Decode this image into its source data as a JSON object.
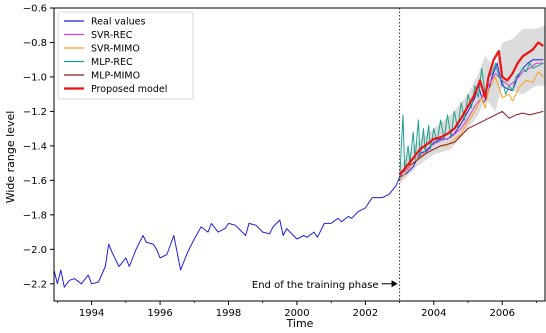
{
  "chart_data": {
    "type": "line",
    "xlabel": "Time",
    "ylabel": "Wide range level",
    "xlim": [
      1992.9,
      2007.25
    ],
    "ylim": [
      -2.3,
      -0.6
    ],
    "x_ticks": [
      1994,
      1996,
      1998,
      2000,
      2002,
      2004,
      2006
    ],
    "y_ticks": [
      -2.2,
      -2.0,
      -1.8,
      -1.6,
      -1.4,
      -1.2,
      -1.0,
      -0.8,
      -0.6
    ],
    "x_tick_labels": [
      "1994",
      "1996",
      "1998",
      "2000",
      "2002",
      "2004",
      "2006"
    ],
    "y_tick_labels": [
      "−2.2",
      "−2.0",
      "−1.8",
      "−1.6",
      "−1.4",
      "−1.2",
      "−1.0",
      "−0.8",
      "−0.6"
    ],
    "grid": false,
    "legend_position": "top-left",
    "annotation": {
      "text": "End of the training phase",
      "x": 2003.0,
      "y": -2.2
    },
    "training_end": 2003.0,
    "uncertainty_band": {
      "color": "#d3d3d3",
      "x": [
        2003.0,
        2003.5,
        2004.0,
        2004.5,
        2005.0,
        2005.3,
        2005.5,
        2005.8,
        2006.0,
        2006.3,
        2006.6,
        2007.0,
        2007.25
      ],
      "lower": [
        -1.62,
        -1.52,
        -1.45,
        -1.42,
        -1.3,
        -1.22,
        -1.12,
        -1.2,
        -1.05,
        -1.08,
        -1.1,
        -1.05,
        -1.05
      ],
      "upper": [
        -1.52,
        -1.38,
        -1.3,
        -1.22,
        -1.1,
        -0.98,
        -0.88,
        -0.95,
        -0.8,
        -0.78,
        -0.72,
        -0.72,
        -0.7
      ]
    },
    "series": [
      {
        "name": "Real values",
        "color": "#1f1fe0",
        "x": [
          1992.9,
          1993.0,
          1993.1,
          1993.2,
          1993.35,
          1993.5,
          1993.7,
          1993.9,
          1994.0,
          1994.2,
          1994.4,
          1994.5,
          1994.6,
          1994.8,
          1995.0,
          1995.1,
          1995.3,
          1995.5,
          1995.6,
          1995.8,
          1995.9,
          1996.0,
          1996.2,
          1996.4,
          1996.5,
          1996.6,
          1996.8,
          1997.0,
          1997.2,
          1997.4,
          1997.5,
          1997.7,
          1997.9,
          1998.0,
          1998.2,
          1998.3,
          1998.5,
          1998.6,
          1998.8,
          1999.0,
          1999.2,
          1999.3,
          1999.5,
          1999.6,
          1999.7,
          1999.9,
          2000.0,
          2000.2,
          2000.3,
          2000.5,
          2000.6,
          2000.8,
          2001.0,
          2001.2,
          2001.3,
          2001.5,
          2001.6,
          2001.8,
          2002.0,
          2002.2,
          2002.5,
          2002.7,
          2002.9,
          2003.0,
          2003.2,
          2003.4,
          2003.5,
          2003.6,
          2003.8,
          2004.0,
          2004.2,
          2004.4,
          2004.6,
          2004.8,
          2005.0,
          2005.2,
          2005.3,
          2005.45,
          2005.55,
          2005.7,
          2005.85,
          2006.0,
          2006.15,
          2006.3,
          2006.45,
          2006.6,
          2006.75,
          2006.9,
          2007.05,
          2007.2
        ],
        "y": [
          -2.12,
          -2.2,
          -2.12,
          -2.22,
          -2.18,
          -2.17,
          -2.2,
          -2.15,
          -2.2,
          -2.19,
          -2.1,
          -1.97,
          -2.02,
          -2.1,
          -2.05,
          -2.1,
          -2.0,
          -1.92,
          -1.96,
          -1.97,
          -2.0,
          -2.05,
          -2.03,
          -1.92,
          -2.02,
          -2.12,
          -2.02,
          -1.94,
          -1.87,
          -1.9,
          -1.85,
          -1.9,
          -1.88,
          -1.85,
          -1.86,
          -1.88,
          -1.92,
          -1.85,
          -1.86,
          -1.9,
          -1.91,
          -1.87,
          -1.83,
          -1.92,
          -1.88,
          -1.92,
          -1.94,
          -1.92,
          -1.93,
          -1.9,
          -1.93,
          -1.85,
          -1.85,
          -1.82,
          -1.84,
          -1.81,
          -1.82,
          -1.78,
          -1.76,
          -1.7,
          -1.7,
          -1.68,
          -1.63,
          -1.58,
          -1.56,
          -1.52,
          -1.48,
          -1.44,
          -1.43,
          -1.38,
          -1.36,
          -1.36,
          -1.33,
          -1.27,
          -1.2,
          -1.12,
          -1.05,
          -1.15,
          -1.12,
          -1.0,
          -0.92,
          -1.05,
          -1.07,
          -1.08,
          -1.0,
          -0.95,
          -0.92,
          -0.9,
          -0.9,
          -0.9
        ]
      },
      {
        "name": "SVR-REC",
        "color": "#d63cd6",
        "x": [
          2003.0,
          2003.3,
          2003.6,
          2003.9,
          2004.2,
          2004.5,
          2004.8,
          2005.0,
          2005.2,
          2005.4,
          2005.6,
          2005.8,
          2006.0,
          2006.2,
          2006.4,
          2006.6,
          2006.8,
          2007.0,
          2007.2
        ],
        "y": [
          -1.57,
          -1.52,
          -1.46,
          -1.4,
          -1.37,
          -1.35,
          -1.3,
          -1.24,
          -1.17,
          -1.12,
          -1.05,
          -0.98,
          -1.02,
          -1.05,
          -1.02,
          -0.97,
          -0.95,
          -0.92,
          -0.92
        ]
      },
      {
        "name": "SVR-MIMO",
        "color": "#ffa01e",
        "x": [
          2003.0,
          2003.2,
          2003.4,
          2003.6,
          2003.8,
          2004.0,
          2004.2,
          2004.4,
          2004.6,
          2004.8,
          2005.0,
          2005.2,
          2005.4,
          2005.5,
          2005.6,
          2005.8,
          2006.0,
          2006.2,
          2006.3,
          2006.5,
          2006.7,
          2006.9,
          2007.05,
          2007.2
        ],
        "y": [
          -1.6,
          -1.55,
          -1.5,
          -1.46,
          -1.44,
          -1.42,
          -1.4,
          -1.4,
          -1.36,
          -1.33,
          -1.26,
          -1.2,
          -1.12,
          -1.18,
          -1.08,
          -1.0,
          -1.12,
          -1.1,
          -1.14,
          -1.06,
          -1.02,
          -1.03,
          -0.97,
          -1.0
        ]
      },
      {
        "name": "MLP-REC",
        "color": "#20a090",
        "x": [
          2003.0,
          2003.1,
          2003.15,
          2003.25,
          2003.3,
          2003.4,
          2003.45,
          2003.55,
          2003.6,
          2003.7,
          2003.75,
          2003.85,
          2003.9,
          2004.0,
          2004.1,
          2004.2,
          2004.3,
          2004.4,
          2004.5,
          2004.6,
          2004.7,
          2004.8,
          2004.9,
          2005.0,
          2005.1,
          2005.2,
          2005.3,
          2005.4,
          2005.5,
          2005.6,
          2005.7,
          2005.8,
          2005.9,
          2006.0,
          2006.1,
          2006.2,
          2006.3,
          2006.4,
          2006.5,
          2006.6,
          2006.7,
          2006.8,
          2006.9,
          2007.0,
          2007.1,
          2007.2
        ],
        "y": [
          -1.6,
          -1.22,
          -1.55,
          -1.4,
          -1.5,
          -1.32,
          -1.48,
          -1.25,
          -1.47,
          -1.3,
          -1.44,
          -1.28,
          -1.42,
          -1.3,
          -1.38,
          -1.25,
          -1.36,
          -1.22,
          -1.35,
          -1.2,
          -1.3,
          -1.15,
          -1.25,
          -1.1,
          -1.18,
          -1.05,
          -1.12,
          -0.95,
          -1.1,
          -1.0,
          -0.98,
          -0.92,
          -1.0,
          -1.02,
          -1.1,
          -1.05,
          -1.08,
          -1.0,
          -0.98,
          -0.95,
          -0.97,
          -0.92,
          -0.95,
          -0.94,
          -0.93,
          -0.92
        ]
      },
      {
        "name": "MLP-MIMO",
        "color": "#8b1a1a",
        "x": [
          2003.0,
          2003.2,
          2003.4,
          2003.6,
          2003.8,
          2004.0,
          2004.2,
          2004.4,
          2004.6,
          2004.8,
          2005.0,
          2005.2,
          2005.4,
          2005.6,
          2005.8,
          2006.0,
          2006.2,
          2006.4,
          2006.6,
          2006.8,
          2007.0,
          2007.2
        ],
        "y": [
          -1.56,
          -1.52,
          -1.5,
          -1.47,
          -1.44,
          -1.42,
          -1.4,
          -1.39,
          -1.38,
          -1.34,
          -1.3,
          -1.28,
          -1.26,
          -1.24,
          -1.22,
          -1.2,
          -1.24,
          -1.22,
          -1.21,
          -1.22,
          -1.21,
          -1.2
        ]
      },
      {
        "name": "Proposed model",
        "color": "#ee1111",
        "x": [
          2003.0,
          2003.2,
          2003.4,
          2003.6,
          2003.8,
          2004.0,
          2004.2,
          2004.4,
          2004.6,
          2004.8,
          2005.0,
          2005.2,
          2005.35,
          2005.5,
          2005.6,
          2005.75,
          2005.9,
          2006.0,
          2006.15,
          2006.3,
          2006.45,
          2006.6,
          2006.75,
          2006.9,
          2007.05,
          2007.2
        ],
        "y": [
          -1.57,
          -1.52,
          -1.47,
          -1.42,
          -1.39,
          -1.36,
          -1.35,
          -1.33,
          -1.3,
          -1.24,
          -1.17,
          -1.1,
          -1.02,
          -1.12,
          -1.0,
          -0.9,
          -0.85,
          -1.0,
          -1.02,
          -0.98,
          -0.92,
          -0.88,
          -0.86,
          -0.84,
          -0.8,
          -0.82
        ]
      }
    ]
  }
}
